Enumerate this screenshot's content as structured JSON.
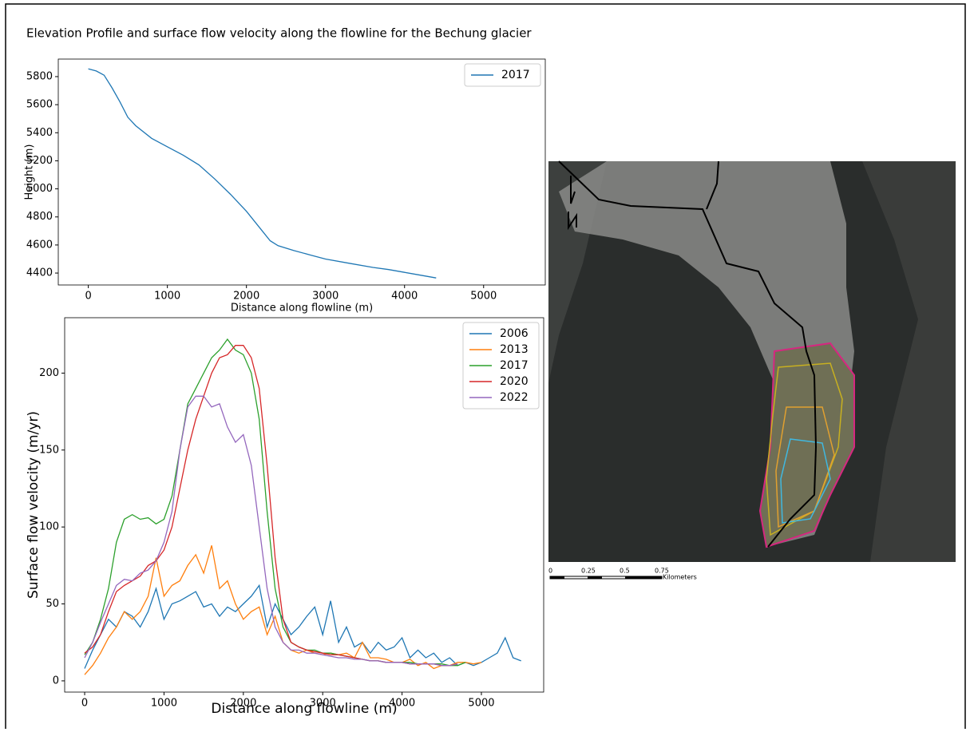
{
  "title": "Elevation Profile and surface flow velocity along the flowline for the Bechung glacier",
  "chart_data": [
    {
      "type": "line",
      "xlabel": "Distance along flowline (m)",
      "ylabel": "Height (m)",
      "x": [
        0,
        100,
        200,
        300,
        400,
        500,
        600,
        800,
        1000,
        1200,
        1400,
        1600,
        1800,
        2000,
        2200,
        2300,
        2400,
        2600,
        2800,
        3000,
        3300,
        3600,
        3800,
        4000,
        4200,
        4400
      ],
      "series": [
        {
          "name": "2017",
          "color": "#1f77b4",
          "values": [
            5855,
            5840,
            5810,
            5720,
            5620,
            5510,
            5450,
            5360,
            5300,
            5240,
            5170,
            5070,
            4960,
            4840,
            4700,
            4630,
            4595,
            4560,
            4530,
            4500,
            4470,
            4440,
            4425,
            4405,
            4385,
            4365
          ]
        }
      ],
      "xlim": [
        -380,
        5780
      ],
      "ylim": [
        4315,
        5925
      ],
      "xticks": [
        0,
        1000,
        2000,
        3000,
        4000,
        5000
      ],
      "yticks": [
        4400,
        4600,
        4800,
        5000,
        5200,
        5400,
        5600,
        5800
      ],
      "legend": "upper right"
    },
    {
      "type": "line",
      "xlabel": "Distance along flowline (m)",
      "ylabel": "Surface flow velocity (m/yr)",
      "x": [
        0,
        100,
        200,
        300,
        400,
        500,
        600,
        700,
        800,
        900,
        1000,
        1100,
        1200,
        1300,
        1400,
        1500,
        1600,
        1700,
        1800,
        1900,
        2000,
        2100,
        2200,
        2300,
        2400,
        2500,
        2600,
        2700,
        2800,
        2900,
        3000,
        3100,
        3200,
        3300,
        3400,
        3500,
        3600,
        3700,
        3800,
        3900,
        4000,
        4100,
        4200,
        4300,
        4400,
        4500,
        4600,
        4700,
        4800,
        4900,
        5000,
        5100,
        5200,
        5300,
        5400,
        5500
      ],
      "series": [
        {
          "name": "2006",
          "color": "#1f77b4",
          "values": [
            8,
            20,
            30,
            40,
            35,
            45,
            42,
            35,
            45,
            60,
            40,
            50,
            52,
            55,
            58,
            48,
            50,
            42,
            48,
            45,
            50,
            55,
            62,
            35,
            50,
            40,
            30,
            35,
            42,
            48,
            30,
            52,
            25,
            35,
            22,
            25,
            18,
            25,
            20,
            22,
            28,
            15,
            20,
            15,
            18,
            12,
            15,
            10,
            12,
            10,
            12,
            15,
            18,
            28,
            15,
            13
          ]
        },
        {
          "name": "2013",
          "color": "#ff7f0e",
          "values": [
            4,
            10,
            18,
            28,
            35,
            45,
            40,
            45,
            55,
            80,
            55,
            62,
            65,
            75,
            82,
            70,
            88,
            60,
            65,
            50,
            40,
            45,
            48,
            30,
            42,
            25,
            20,
            18,
            20,
            18,
            17,
            18,
            17,
            18,
            15,
            25,
            15,
            15,
            14,
            12,
            12,
            14,
            10,
            12,
            8,
            10,
            10,
            12,
            12,
            11,
            12,
            null,
            null,
            null,
            null,
            null
          ]
        },
        {
          "name": "2017",
          "color": "#2ca02c",
          "values": [
            17,
            25,
            40,
            60,
            90,
            105,
            108,
            105,
            106,
            102,
            105,
            120,
            150,
            180,
            190,
            200,
            210,
            215,
            222,
            215,
            212,
            200,
            170,
            110,
            60,
            35,
            25,
            22,
            20,
            20,
            18,
            18,
            17,
            16,
            15,
            14,
            13,
            13,
            12,
            12,
            12,
            12,
            11,
            11,
            11,
            11,
            10,
            10,
            12,
            null,
            null,
            null,
            null,
            null,
            null,
            null
          ]
        },
        {
          "name": "2020",
          "color": "#d62728",
          "values": [
            18,
            22,
            30,
            45,
            58,
            62,
            65,
            68,
            75,
            78,
            85,
            100,
            125,
            150,
            170,
            185,
            200,
            210,
            212,
            218,
            218,
            210,
            190,
            140,
            80,
            40,
            25,
            22,
            20,
            19,
            18,
            17,
            17,
            16,
            15,
            14,
            13,
            13,
            12,
            12,
            12,
            11,
            11,
            11,
            11,
            10,
            10,
            11,
            null,
            null,
            null,
            null,
            null,
            null,
            null,
            null
          ]
        },
        {
          "name": "2022",
          "color": "#9467bd",
          "values": [
            15,
            25,
            38,
            50,
            62,
            66,
            65,
            70,
            72,
            78,
            90,
            110,
            150,
            178,
            185,
            185,
            178,
            180,
            165,
            155,
            160,
            140,
            100,
            60,
            35,
            25,
            20,
            20,
            18,
            18,
            17,
            16,
            15,
            15,
            14,
            14,
            13,
            13,
            12,
            12,
            12,
            11,
            11,
            11,
            11,
            10,
            10,
            11,
            null,
            null,
            null,
            null,
            null,
            null,
            null,
            null
          ]
        }
      ],
      "xlim": [
        -252,
        5785
      ],
      "ylim": [
        -7.3,
        236
      ],
      "xticks": [
        0,
        1000,
        2000,
        3000,
        4000,
        5000
      ],
      "yticks": [
        0,
        50,
        100,
        150,
        200
      ],
      "legend": "upper right"
    }
  ],
  "map": {
    "scale_labels": [
      "0",
      "0.25",
      "0.5",
      "0.75"
    ],
    "unit": "Kilometers"
  }
}
